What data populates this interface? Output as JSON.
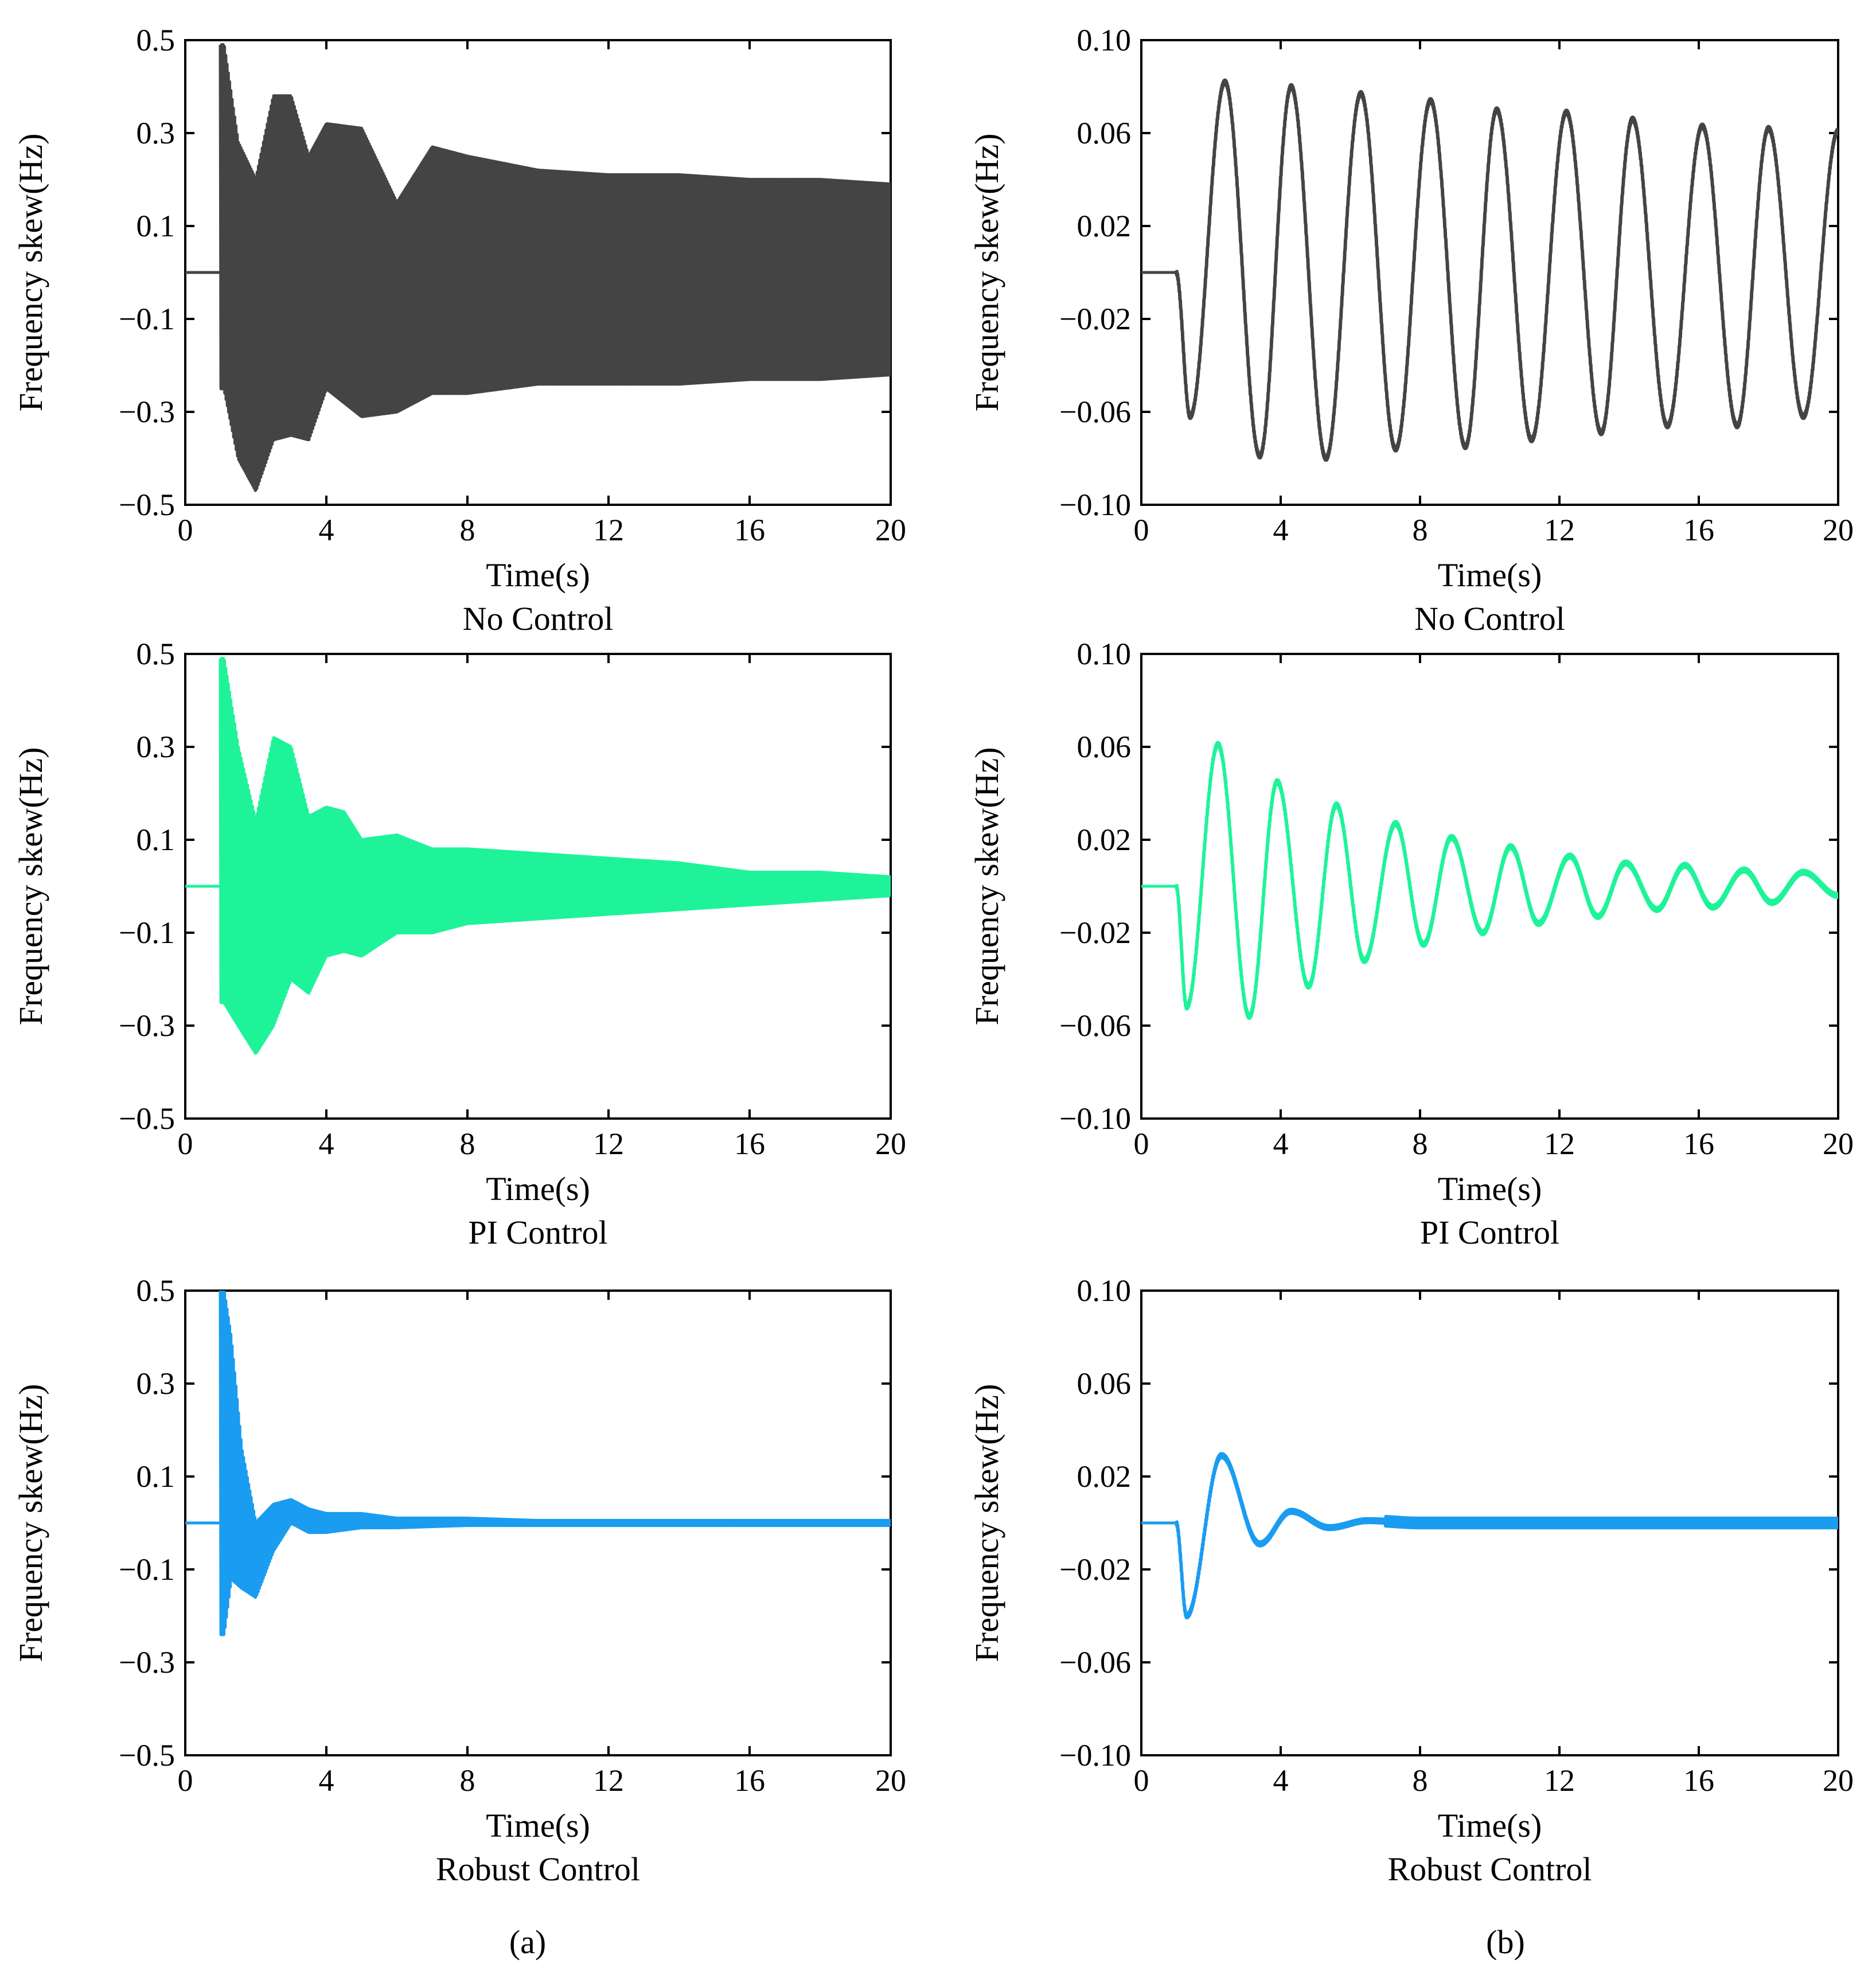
{
  "figure_labels": [
    "(a)",
    "(b)"
  ],
  "chart_data": [
    {
      "id": "a-no",
      "type": "line",
      "panel": "a",
      "title": "No Control",
      "xlabel": "Time(s)",
      "ylabel": "Frequency skew(Hz)",
      "xlim": [
        0,
        20
      ],
      "ylim": [
        -0.5,
        0.5
      ],
      "xticks": [
        0,
        4,
        8,
        12,
        16,
        20
      ],
      "xtick_labels": [
        "0",
        "4",
        "8",
        "12",
        "16",
        "20"
      ],
      "yticks": [
        0.5,
        0.3,
        0.1,
        -0.1,
        -0.3,
        -0.5
      ],
      "ytick_labels": [
        "0.5",
        "0.3",
        "0.1",
        "−0.1",
        "−0.3",
        "−0.5"
      ],
      "color": "#444444",
      "steady_value": 0,
      "disturbance_time": 1.0,
      "series": [
        {
          "name": "frequency skew",
          "envelope": {
            "x": [
              1.0,
              1.1,
              1.5,
              2.0,
              2.5,
              3.0,
              3.5,
              4.0,
              5.0,
              6.0,
              7.0,
              8.0,
              10.0,
              12.0,
              14.0,
              16.0,
              18.0,
              20.0
            ],
            "upper": [
              0.49,
              0.49,
              0.28,
              0.2,
              0.38,
              0.38,
              0.25,
              0.32,
              0.31,
              0.15,
              0.27,
              0.25,
              0.22,
              0.21,
              0.21,
              0.2,
              0.2,
              0.19
            ],
            "lower": [
              -0.25,
              -0.25,
              -0.4,
              -0.47,
              -0.36,
              -0.35,
              -0.36,
              -0.25,
              -0.31,
              -0.3,
              -0.26,
              -0.26,
              -0.24,
              -0.24,
              -0.24,
              -0.23,
              -0.23,
              -0.22
            ]
          }
        }
      ]
    },
    {
      "id": "b-no",
      "type": "line",
      "panel": "b",
      "title": "No Control",
      "xlabel": "Time(s)",
      "ylabel": "Frequency skew(Hz)",
      "xlim": [
        0,
        20
      ],
      "ylim": [
        -0.1,
        0.1
      ],
      "xticks": [
        0,
        4,
        8,
        12,
        16,
        20
      ],
      "xtick_labels": [
        "0",
        "4",
        "8",
        "12",
        "16",
        "20"
      ],
      "yticks": [
        0.1,
        0.06,
        0.02,
        -0.02,
        -0.06,
        -0.1
      ],
      "ytick_labels": [
        "0.10",
        "0.06",
        "0.02",
        "−0.02",
        "−0.06",
        "−0.10"
      ],
      "color": "#444444",
      "steady_value": 0,
      "disturbance_time": 1.0,
      "series": [
        {
          "name": "frequency skew",
          "peaks": {
            "t": [
              1.0,
              1.4,
              2.4,
              3.4,
              4.3,
              5.3,
              6.3,
              7.3,
              8.3,
              9.3,
              10.2,
              11.2,
              12.2,
              13.2,
              14.1,
              15.1,
              16.1,
              17.1,
              18.0,
              19.0,
              20.0
            ],
            "v": [
              0,
              -0.062,
              0.082,
              -0.079,
              0.08,
              -0.08,
              0.077,
              -0.076,
              0.074,
              -0.075,
              0.07,
              -0.072,
              0.069,
              -0.069,
              0.066,
              -0.066,
              0.063,
              -0.066,
              0.062,
              -0.062,
              0.061
            ]
          }
        }
      ]
    },
    {
      "id": "a-pi",
      "type": "line",
      "panel": "a",
      "title": "PI Control",
      "xlabel": "Time(s)",
      "ylabel": "Frequency skew(Hz)",
      "xlim": [
        0,
        20
      ],
      "ylim": [
        -0.5,
        0.5
      ],
      "xticks": [
        0,
        4,
        8,
        12,
        16,
        20
      ],
      "xtick_labels": [
        "0",
        "4",
        "8",
        "12",
        "16",
        "20"
      ],
      "yticks": [
        0.5,
        0.3,
        0.1,
        -0.1,
        -0.3,
        -0.5
      ],
      "ytick_labels": [
        "0.5",
        "0.3",
        "0.1",
        "−0.1",
        "−0.3",
        "−0.5"
      ],
      "color": "#1FF39A",
      "steady_value": 0,
      "disturbance_time": 1.0,
      "series": [
        {
          "name": "frequency skew",
          "envelope": {
            "x": [
              1.0,
              1.1,
              1.5,
              2.0,
              2.5,
              3.0,
              3.5,
              4.0,
              4.5,
              5.0,
              6.0,
              7.0,
              8.0,
              10.0,
              12.0,
              14.0,
              16.0,
              18.0,
              20.0
            ],
            "upper": [
              0.49,
              0.49,
              0.3,
              0.14,
              0.32,
              0.3,
              0.15,
              0.17,
              0.16,
              0.1,
              0.11,
              0.08,
              0.08,
              0.07,
              0.06,
              0.05,
              0.03,
              0.03,
              0.02
            ],
            "lower": [
              -0.25,
              -0.25,
              -0.3,
              -0.36,
              -0.3,
              -0.2,
              -0.23,
              -0.15,
              -0.14,
              -0.15,
              -0.1,
              -0.1,
              -0.08,
              -0.07,
              -0.06,
              -0.05,
              -0.04,
              -0.03,
              -0.02
            ]
          }
        }
      ]
    },
    {
      "id": "b-pi",
      "type": "line",
      "panel": "b",
      "title": "PI Control",
      "xlabel": "Time(s)",
      "ylabel": "Frequency skew(Hz)",
      "xlim": [
        0,
        20
      ],
      "ylim": [
        -0.1,
        0.1
      ],
      "xticks": [
        0,
        4,
        8,
        12,
        16,
        20
      ],
      "xtick_labels": [
        "0",
        "4",
        "8",
        "12",
        "16",
        "20"
      ],
      "yticks": [
        0.1,
        0.06,
        0.02,
        -0.02,
        -0.06,
        -0.1
      ],
      "ytick_labels": [
        "0.10",
        "0.06",
        "0.02",
        "−0.02",
        "−0.06",
        "−0.10"
      ],
      "color": "#1FF39A",
      "steady_value": 0,
      "disturbance_time": 1.0,
      "series": [
        {
          "name": "frequency skew",
          "peaks": {
            "t": [
              1.0,
              1.3,
              2.2,
              3.1,
              3.9,
              4.8,
              5.6,
              6.4,
              7.3,
              8.1,
              8.9,
              9.8,
              10.6,
              11.4,
              12.3,
              13.1,
              13.9,
              14.8,
              15.6,
              16.4,
              17.3,
              18.1,
              19.0,
              20.0
            ],
            "v": [
              0,
              -0.052,
              0.061,
              -0.056,
              0.045,
              -0.043,
              0.035,
              -0.032,
              0.027,
              -0.025,
              0.021,
              -0.02,
              0.017,
              -0.016,
              0.013,
              -0.013,
              0.01,
              -0.01,
              0.009,
              -0.009,
              0.007,
              -0.007,
              0.006,
              -0.004
            ]
          }
        }
      ]
    },
    {
      "id": "a-robust",
      "type": "line",
      "panel": "a",
      "title": "Robust Control",
      "xlabel": "Time(s)",
      "ylabel": "Frequency skew(Hz)",
      "xlim": [
        0,
        20
      ],
      "ylim": [
        -0.5,
        0.5
      ],
      "xticks": [
        0,
        4,
        8,
        12,
        16,
        20
      ],
      "xtick_labels": [
        "0",
        "4",
        "8",
        "12",
        "16",
        "20"
      ],
      "yticks": [
        0.5,
        0.3,
        0.1,
        -0.1,
        -0.3,
        -0.5
      ],
      "ytick_labels": [
        "0.5",
        "0.3",
        "0.1",
        "−0.1",
        "−0.3",
        "−0.5"
      ],
      "color": "#1A9CF0",
      "steady_value": 0,
      "disturbance_time": 1.0,
      "series": [
        {
          "name": "frequency skew",
          "envelope": {
            "x": [
              1.0,
              1.1,
              1.3,
              1.6,
              2.0,
              2.5,
              3.0,
              3.5,
              4.0,
              5.0,
              6.0,
              8.0,
              10.0,
              20.0
            ],
            "upper": [
              0.5,
              0.5,
              0.4,
              0.16,
              0.0,
              0.04,
              0.05,
              0.03,
              0.02,
              0.02,
              0.01,
              0.01,
              0.005,
              0.005
            ],
            "lower": [
              -0.24,
              -0.24,
              -0.12,
              -0.14,
              -0.16,
              -0.06,
              0.0,
              -0.02,
              -0.02,
              -0.01,
              -0.01,
              -0.005,
              -0.005,
              -0.005
            ]
          }
        }
      ]
    },
    {
      "id": "b-robust",
      "type": "line",
      "panel": "b",
      "title": "Robust Control",
      "xlabel": "Time(s)",
      "ylabel": "Frequency skew(Hz)",
      "xlim": [
        0,
        20
      ],
      "ylim": [
        -0.1,
        0.1
      ],
      "xticks": [
        0,
        4,
        8,
        12,
        16,
        20
      ],
      "xtick_labels": [
        "0",
        "4",
        "8",
        "12",
        "16",
        "20"
      ],
      "yticks": [
        0.1,
        0.06,
        0.02,
        -0.02,
        -0.06,
        -0.1
      ],
      "ytick_labels": [
        "0.10",
        "0.06",
        "0.02",
        "−0.02",
        "−0.06",
        "−0.10"
      ],
      "color": "#1A9CF0",
      "steady_value": 0,
      "disturbance_time": 1.0,
      "series": [
        {
          "name": "frequency skew",
          "peaks": {
            "t": [
              1.0,
              1.3,
              2.3,
              3.4,
              4.3,
              5.4,
              6.5,
              8.0,
              20.0
            ],
            "v": [
              0,
              -0.04,
              0.029,
              -0.009,
              0.005,
              -0.002,
              0.001,
              0,
              0
            ]
          },
          "noise_band": 0.002
        }
      ]
    }
  ]
}
